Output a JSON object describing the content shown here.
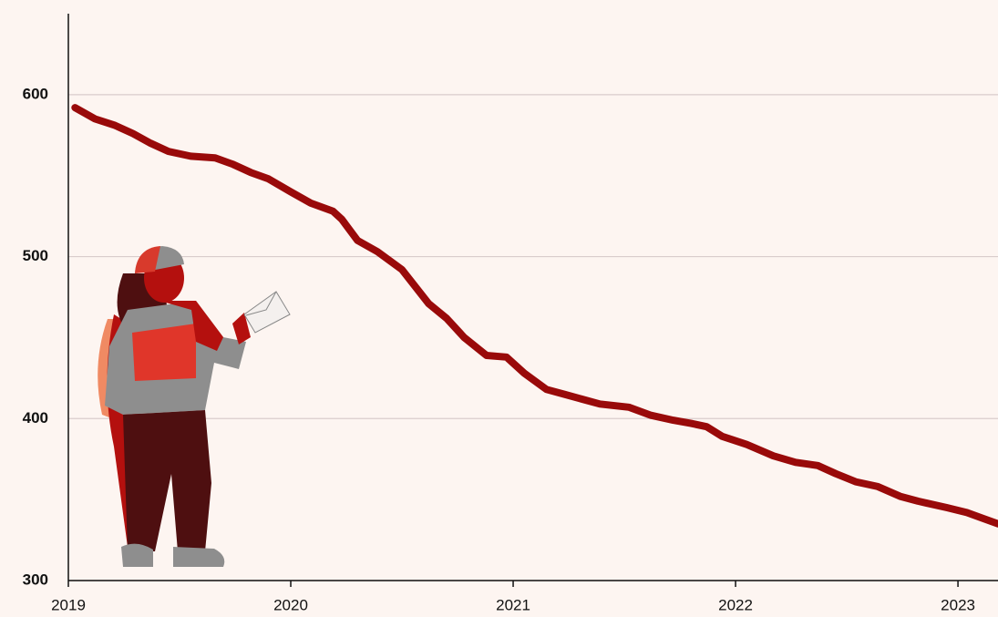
{
  "chart_data": {
    "type": "line",
    "x": [
      2019.03,
      2019.12,
      2019.21,
      2019.29,
      2019.37,
      2019.45,
      2019.55,
      2019.66,
      2019.74,
      2019.82,
      2019.9,
      2020.0,
      2020.09,
      2020.19,
      2020.23,
      2020.3,
      2020.39,
      2020.5,
      2020.62,
      2020.7,
      2020.78,
      2020.88,
      2020.97,
      2021.05,
      2021.15,
      2021.23,
      2021.31,
      2021.39,
      2021.52,
      2021.62,
      2021.72,
      2021.8,
      2021.87,
      2021.94,
      2022.05,
      2022.17,
      2022.27,
      2022.37,
      2022.45,
      2022.54,
      2022.64,
      2022.74,
      2022.82,
      2022.95,
      2023.04,
      2023.12,
      2023.18
    ],
    "series": [
      {
        "color": "#990a0a",
        "values": [
          592,
          585,
          581,
          576,
          570,
          565,
          562,
          561,
          557,
          552,
          548,
          540,
          533,
          528,
          523,
          510,
          503,
          492,
          471,
          462,
          450,
          439,
          438,
          428,
          418,
          415,
          412,
          409,
          407,
          402,
          399,
          397,
          395,
          389,
          384,
          377,
          373,
          371,
          366,
          361,
          358,
          352,
          349,
          345,
          342,
          338,
          335
        ]
      }
    ],
    "xlim": [
      2019,
      2023.18
    ],
    "xticks": [
      2019,
      2020,
      2021,
      2022,
      2023
    ],
    "ylim": [
      300,
      650
    ],
    "yticks": [
      300,
      400,
      500,
      600
    ],
    "grid": true
  }
}
